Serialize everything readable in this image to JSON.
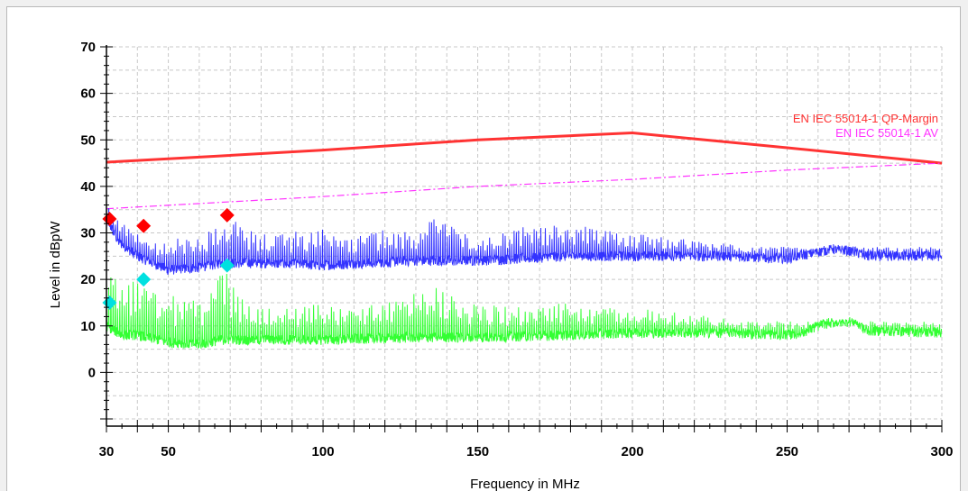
{
  "chart_data": {
    "type": "line",
    "xlabel": "Frequency in MHz",
    "ylabel": "Level in dBpW",
    "xlim": [
      30,
      300
    ],
    "ylim": [
      -10,
      70
    ],
    "x_tick_labels": [
      "30",
      "50",
      "100",
      "150",
      "200",
      "250",
      "300"
    ],
    "x_ticks": [
      30,
      50,
      100,
      150,
      200,
      250,
      300
    ],
    "y_tick_labels": [
      "0",
      "10",
      "20",
      "30",
      "40",
      "50",
      "60",
      "70"
    ],
    "y_ticks": [
      0,
      10,
      20,
      30,
      40,
      50,
      60,
      70
    ],
    "grid": true,
    "limit_lines": [
      {
        "name": "EN IEC 55014-1 QP-Margin",
        "color": "#ff3333",
        "style": "solid",
        "points": [
          [
            30,
            45.2
          ],
          [
            60,
            46.3
          ],
          [
            100,
            47.8
          ],
          [
            150,
            50.0
          ],
          [
            200,
            51.5
          ],
          [
            250,
            48.3
          ],
          [
            300,
            45.0
          ]
        ]
      },
      {
        "name": "EN IEC 55014-1 AV",
        "color": "#ff33ff",
        "style": "dashdot",
        "points": [
          [
            30,
            35.2
          ],
          [
            100,
            37.8
          ],
          [
            150,
            40.0
          ],
          [
            200,
            41.5
          ],
          [
            250,
            43.5
          ],
          [
            300,
            45.0
          ]
        ]
      }
    ],
    "series": [
      {
        "color": "#3333ff",
        "baseline": [
          [
            30,
            33
          ],
          [
            34,
            28
          ],
          [
            40,
            25
          ],
          [
            50,
            22
          ],
          [
            60,
            22.5
          ],
          [
            67,
            23.5
          ],
          [
            80,
            23.5
          ],
          [
            100,
            23.0
          ],
          [
            130,
            24.0
          ],
          [
            150,
            24.0
          ],
          [
            180,
            25.0
          ],
          [
            200,
            25.0
          ],
          [
            230,
            25.0
          ],
          [
            250,
            24.5
          ],
          [
            265,
            26.5
          ],
          [
            272,
            26.0
          ],
          [
            275,
            25.0
          ],
          [
            300,
            25.0
          ]
        ],
        "spikes": [
          [
            30,
            37
          ],
          [
            33,
            33
          ],
          [
            38,
            31
          ],
          [
            45,
            28
          ],
          [
            55,
            29
          ],
          [
            62,
            30
          ],
          [
            67,
            35
          ],
          [
            75,
            31
          ],
          [
            85,
            30
          ],
          [
            100,
            31
          ],
          [
            110,
            30
          ],
          [
            120,
            31
          ],
          [
            130,
            31
          ],
          [
            137,
            34
          ],
          [
            140,
            33
          ],
          [
            150,
            30
          ],
          [
            160,
            31
          ],
          [
            175,
            32
          ],
          [
            180,
            32
          ],
          [
            190,
            31
          ],
          [
            200,
            30
          ],
          [
            215,
            29
          ],
          [
            225,
            28
          ],
          [
            240,
            27
          ]
        ]
      },
      {
        "color": "#33ff33",
        "baseline": [
          [
            30,
            10
          ],
          [
            35,
            8
          ],
          [
            40,
            8
          ],
          [
            50,
            6.5
          ],
          [
            60,
            6
          ],
          [
            67,
            7
          ],
          [
            80,
            7
          ],
          [
            100,
            7
          ],
          [
            130,
            7.5
          ],
          [
            150,
            7.5
          ],
          [
            180,
            8
          ],
          [
            200,
            8.5
          ],
          [
            230,
            8.5
          ],
          [
            250,
            8.0
          ],
          [
            255,
            8.5
          ],
          [
            262,
            10.5
          ],
          [
            272,
            11
          ],
          [
            275,
            9
          ],
          [
            300,
            8.5
          ]
        ],
        "spikes": [
          [
            30,
            22
          ],
          [
            33,
            20
          ],
          [
            38,
            20
          ],
          [
            45,
            18
          ],
          [
            55,
            16
          ],
          [
            62,
            16
          ],
          [
            67,
            24
          ],
          [
            75,
            15
          ],
          [
            85,
            14
          ],
          [
            100,
            15
          ],
          [
            110,
            14
          ],
          [
            120,
            15
          ],
          [
            130,
            17
          ],
          [
            137,
            19
          ],
          [
            140,
            18
          ],
          [
            150,
            15
          ],
          [
            160,
            14
          ],
          [
            175,
            15
          ],
          [
            180,
            16
          ],
          [
            190,
            14
          ],
          [
            200,
            14
          ],
          [
            215,
            13
          ],
          [
            225,
            12
          ],
          [
            240,
            11
          ]
        ]
      }
    ],
    "markers": [
      {
        "type": "QP",
        "color": "#ff0000",
        "points": [
          [
            31,
            33
          ],
          [
            42,
            31.5
          ],
          [
            69,
            33.8
          ]
        ]
      },
      {
        "type": "AV",
        "color": "#00e0e0",
        "points": [
          [
            31,
            15
          ],
          [
            42,
            20
          ],
          [
            69,
            23
          ]
        ]
      }
    ]
  }
}
